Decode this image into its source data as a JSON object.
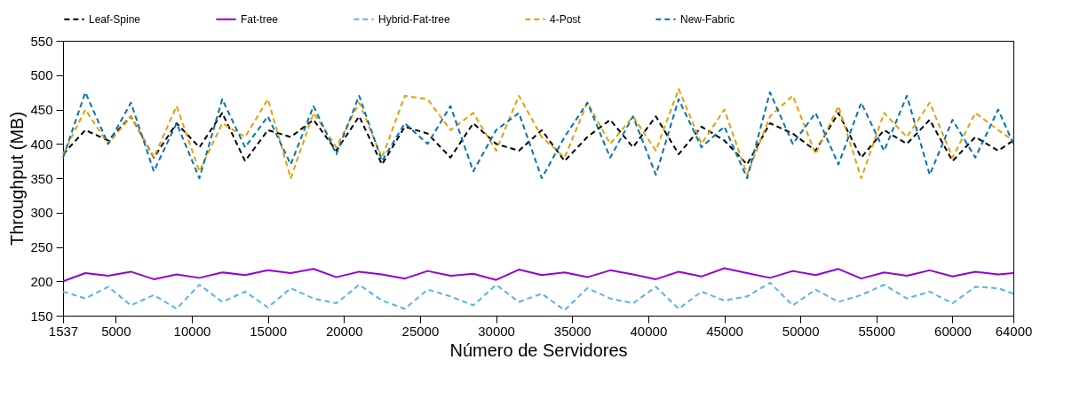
{
  "chart_data": {
    "type": "line",
    "xlabel": "Número de Servidores",
    "ylabel": "Throughput (MB)",
    "x": [
      1537,
      3000,
      4500,
      6000,
      7500,
      9000,
      10500,
      12000,
      13500,
      15000,
      16500,
      18000,
      19500,
      21000,
      22500,
      24000,
      25500,
      27000,
      28500,
      30000,
      31500,
      33000,
      34500,
      36000,
      37500,
      39000,
      40500,
      42000,
      43500,
      45000,
      46500,
      48000,
      49500,
      51000,
      52500,
      54000,
      55500,
      57000,
      58500,
      60000,
      61500,
      63000,
      64000
    ],
    "series": [
      {
        "name": "Leaf-Spine",
        "color": "#000000",
        "line_style": "dashed",
        "values": [
          385,
          420,
          405,
          440,
          380,
          430,
          395,
          445,
          375,
          420,
          410,
          435,
          390,
          440,
          370,
          425,
          415,
          380,
          430,
          400,
          390,
          420,
          375,
          410,
          435,
          395,
          440,
          385,
          425,
          405,
          370,
          430,
          415,
          390,
          445,
          380,
          420,
          400,
          435,
          375,
          410,
          390,
          405
        ]
      },
      {
        "name": "Fat-tree",
        "color": "#9400d3",
        "line_style": "solid",
        "values": [
          200,
          212,
          208,
          214,
          203,
          210,
          205,
          213,
          209,
          216,
          212,
          218,
          206,
          214,
          210,
          204,
          215,
          208,
          211,
          202,
          217,
          209,
          213,
          206,
          216,
          210,
          203,
          214,
          207,
          219,
          212,
          205,
          215,
          209,
          218,
          204,
          213,
          208,
          216,
          207,
          214,
          210,
          212
        ]
      },
      {
        "name": "Hybrid-Fat-tree",
        "color": "#56b4e9",
        "line_style": "dashed",
        "values": [
          185,
          175,
          192,
          165,
          180,
          160,
          195,
          170,
          185,
          162,
          190,
          175,
          168,
          195,
          172,
          160,
          188,
          178,
          165,
          195,
          170,
          182,
          158,
          190,
          175,
          168,
          192,
          160,
          185,
          172,
          178,
          198,
          165,
          188,
          170,
          180,
          195,
          175,
          185,
          168,
          192,
          190,
          182
        ]
      },
      {
        "name": "4-Post",
        "color": "#e69f00",
        "line_style": "dashed",
        "values": [
          385,
          450,
          400,
          440,
          380,
          455,
          360,
          430,
          410,
          465,
          350,
          445,
          395,
          460,
          380,
          470,
          465,
          420,
          445,
          390,
          470,
          410,
          380,
          460,
          400,
          440,
          390,
          480,
          400,
          450,
          355,
          440,
          470,
          385,
          455,
          350,
          445,
          410,
          460,
          380,
          445,
          420,
          405
        ]
      },
      {
        "name": "New-Fabric",
        "color": "#0072b2",
        "line_style": "dashed",
        "values": [
          380,
          475,
          400,
          460,
          360,
          430,
          350,
          465,
          395,
          440,
          370,
          455,
          385,
          470,
          375,
          430,
          400,
          455,
          360,
          420,
          445,
          350,
          410,
          460,
          380,
          440,
          355,
          465,
          395,
          425,
          350,
          475,
          400,
          445,
          370,
          460,
          390,
          470,
          355,
          435,
          380,
          450,
          400
        ]
      }
    ],
    "xlim": [
      1537,
      64000
    ],
    "xticks": [
      1537,
      5000,
      10000,
      15000,
      20000,
      25000,
      30000,
      35000,
      40000,
      45000,
      50000,
      55000,
      60000,
      64000
    ],
    "ylim": [
      150,
      550
    ],
    "yticks": [
      150,
      200,
      250,
      300,
      350,
      400,
      450,
      500,
      550
    ],
    "grid": false,
    "legend": "top"
  }
}
